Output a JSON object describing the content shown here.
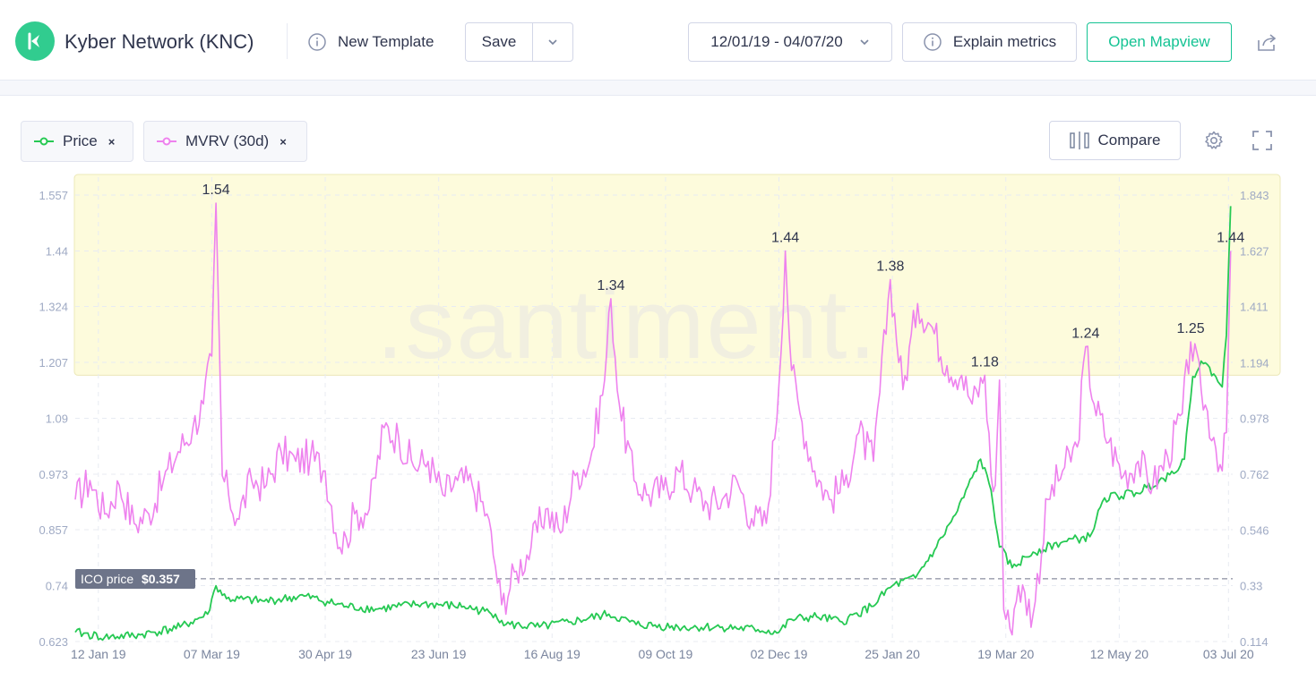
{
  "header": {
    "title": "Kyber Network (KNC)",
    "template_label": "New Template",
    "save_label": "Save",
    "date_range": "12/01/19 - 04/07/20",
    "explain_label": "Explain metrics",
    "mapview_label": "Open Mapview"
  },
  "toolbar": {
    "metrics": [
      {
        "name": "Price",
        "color": "#26c953"
      },
      {
        "name": "MVRV (30d)",
        "color": "#ee82ee"
      }
    ],
    "remove_label": "×",
    "compare_label": "Compare"
  },
  "colors": {
    "accent": "#14c393",
    "price": "#26c953",
    "mvrv": "#ee82ee",
    "highlight": "#fdfbdc"
  },
  "chart_data": {
    "type": "line",
    "watermark": ".santiment.",
    "x_tick_labels": [
      "12 Jan 19",
      "07 Mar 19",
      "30 Apr 19",
      "23 Jun 19",
      "16 Aug 19",
      "09 Oct 19",
      "02 Dec 19",
      "25 Jan 20",
      "19 Mar 20",
      "12 May 20",
      "03 Jul 20"
    ],
    "left_axis": {
      "metric": "MVRV (30d)",
      "ticks": [
        "1.557",
        "1.44",
        "1.324",
        "1.207",
        "1.09",
        "0.973",
        "0.857",
        "0.74",
        "0.623"
      ],
      "range": [
        0.623,
        1.557
      ]
    },
    "right_axis": {
      "metric": "Price",
      "ticks": [
        "1.843",
        "1.627",
        "1.411",
        "1.194",
        "0.978",
        "0.762",
        "0.546",
        "0.33",
        "0.114"
      ],
      "range": [
        0.114,
        1.843
      ]
    },
    "highlight_band": {
      "from": 1.18,
      "to": 1.58
    },
    "ico_price": {
      "label": "ICO price",
      "value_label": "$0.357",
      "value": 0.357
    },
    "peak_labels": [
      {
        "date": "2019-03-09",
        "text": "1.54"
      },
      {
        "date": "2019-09-13",
        "text": "1.34"
      },
      {
        "date": "2019-12-05",
        "text": "1.44"
      },
      {
        "date": "2020-01-24",
        "text": "1.38"
      },
      {
        "date": "2020-03-09",
        "text": "1.18"
      },
      {
        "date": "2020-04-26",
        "text": "1.24"
      },
      {
        "date": "2020-06-15",
        "text": "1.25"
      },
      {
        "date": "2020-07-04",
        "text": "1.44"
      }
    ],
    "series": [
      {
        "name": "MVRV (30d)",
        "axis": "left",
        "x": [
          "2019-01-01",
          "2019-01-08",
          "2019-01-15",
          "2019-01-22",
          "2019-01-29",
          "2019-02-05",
          "2019-02-12",
          "2019-02-19",
          "2019-02-26",
          "2019-03-03",
          "2019-03-07",
          "2019-03-09",
          "2019-03-12",
          "2019-03-15",
          "2019-03-19",
          "2019-03-26",
          "2019-04-02",
          "2019-04-09",
          "2019-04-16",
          "2019-04-23",
          "2019-04-30",
          "2019-05-07",
          "2019-05-10",
          "2019-05-14",
          "2019-05-21",
          "2019-05-28",
          "2019-06-04",
          "2019-06-11",
          "2019-06-18",
          "2019-06-25",
          "2019-07-02",
          "2019-07-09",
          "2019-07-16",
          "2019-07-20",
          "2019-07-23",
          "2019-07-30",
          "2019-08-06",
          "2019-08-13",
          "2019-08-20",
          "2019-08-27",
          "2019-09-03",
          "2019-09-10",
          "2019-09-13",
          "2019-09-17",
          "2019-09-24",
          "2019-10-01",
          "2019-10-08",
          "2019-10-15",
          "2019-10-22",
          "2019-10-29",
          "2019-11-05",
          "2019-11-12",
          "2019-11-19",
          "2019-11-26",
          "2019-12-02",
          "2019-12-05",
          "2019-12-08",
          "2019-12-12",
          "2019-12-19",
          "2019-12-26",
          "2020-01-02",
          "2020-01-09",
          "2020-01-16",
          "2020-01-24",
          "2020-01-30",
          "2020-02-06",
          "2020-02-13",
          "2020-02-20",
          "2020-02-27",
          "2020-03-03",
          "2020-03-09",
          "2020-03-12",
          "2020-03-14",
          "2020-03-16",
          "2020-03-18",
          "2020-03-21",
          "2020-03-25",
          "2020-04-01",
          "2020-04-08",
          "2020-04-15",
          "2020-04-22",
          "2020-04-26",
          "2020-04-30",
          "2020-05-07",
          "2020-05-14",
          "2020-05-21",
          "2020-05-28",
          "2020-06-04",
          "2020-06-11",
          "2020-06-15",
          "2020-06-20",
          "2020-06-26",
          "2020-06-30",
          "2020-07-02",
          "2020-07-04"
        ],
        "values": [
          0.92,
          0.96,
          0.89,
          0.95,
          0.87,
          0.89,
          0.96,
          1.02,
          1.07,
          1.12,
          1.22,
          1.54,
          0.97,
          0.93,
          0.88,
          0.96,
          0.95,
          1.02,
          1.0,
          1.01,
          0.98,
          0.82,
          0.84,
          0.89,
          0.9,
          1.07,
          1.05,
          0.99,
          1.0,
          0.93,
          0.96,
          0.95,
          0.89,
          0.78,
          0.7,
          0.77,
          0.82,
          0.9,
          0.85,
          0.97,
          1.0,
          1.17,
          1.34,
          1.12,
          0.96,
          0.93,
          0.94,
          0.98,
          0.94,
          0.91,
          0.92,
          0.96,
          0.88,
          0.87,
          1.16,
          1.44,
          1.19,
          1.1,
          0.98,
          0.92,
          0.95,
          1.06,
          1.0,
          1.38,
          1.15,
          1.33,
          1.28,
          1.2,
          1.18,
          1.12,
          1.18,
          0.97,
          0.95,
          1.17,
          0.69,
          0.65,
          0.74,
          0.68,
          0.92,
          0.98,
          1.03,
          1.24,
          1.12,
          1.04,
          0.97,
          1.0,
          0.95,
          1.01,
          1.1,
          1.25,
          1.15,
          1.05,
          0.98,
          1.06,
          1.44
        ]
      },
      {
        "name": "Price",
        "axis": "right",
        "x": [
          "2019-01-01",
          "2019-01-15",
          "2019-02-01",
          "2019-02-20",
          "2019-03-05",
          "2019-03-09",
          "2019-03-14",
          "2019-04-01",
          "2019-04-20",
          "2019-05-10",
          "2019-05-25",
          "2019-06-15",
          "2019-07-05",
          "2019-07-20",
          "2019-07-25",
          "2019-08-10",
          "2019-08-25",
          "2019-09-12",
          "2019-09-25",
          "2019-10-15",
          "2019-11-05",
          "2019-11-22",
          "2019-12-02",
          "2019-12-08",
          "2019-12-20",
          "2020-01-01",
          "2020-01-15",
          "2020-01-25",
          "2020-02-05",
          "2020-02-15",
          "2020-02-25",
          "2020-03-07",
          "2020-03-12",
          "2020-03-16",
          "2020-03-22",
          "2020-04-01",
          "2020-04-15",
          "2020-04-28",
          "2020-05-05",
          "2020-05-20",
          "2020-06-05",
          "2020-06-12",
          "2020-06-16",
          "2020-06-20",
          "2020-06-26",
          "2020-06-30",
          "2020-07-02",
          "2020-07-04"
        ],
        "values": [
          0.15,
          0.13,
          0.14,
          0.17,
          0.22,
          0.33,
          0.28,
          0.27,
          0.29,
          0.25,
          0.24,
          0.26,
          0.25,
          0.22,
          0.18,
          0.17,
          0.19,
          0.22,
          0.18,
          0.17,
          0.17,
          0.16,
          0.15,
          0.2,
          0.21,
          0.19,
          0.25,
          0.33,
          0.36,
          0.48,
          0.62,
          0.82,
          0.7,
          0.48,
          0.4,
          0.46,
          0.5,
          0.52,
          0.67,
          0.69,
          0.76,
          0.82,
          1.14,
          1.2,
          1.15,
          1.1,
          1.3,
          1.8
        ]
      }
    ]
  }
}
